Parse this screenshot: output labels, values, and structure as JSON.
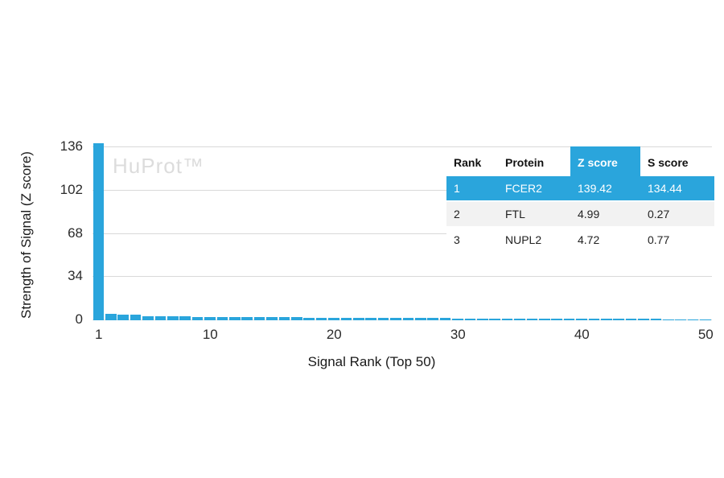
{
  "watermark": "HuProt™",
  "colors": {
    "bar": "#2aa5dc",
    "highlight_row": "#2aa5dc",
    "gridline": "#d9d9d9",
    "alt_row": "#f2f2f2",
    "watermark": "#dcdcdc",
    "text": "#2b2b2b"
  },
  "chart_data": {
    "type": "bar",
    "title": "",
    "xlabel": "Signal Rank (Top 50)",
    "ylabel": "Strength of Signal (Z score)",
    "x": [
      1,
      2,
      3,
      4,
      5,
      6,
      7,
      8,
      9,
      10,
      11,
      12,
      13,
      14,
      15,
      16,
      17,
      18,
      19,
      20,
      21,
      22,
      23,
      24,
      25,
      26,
      27,
      28,
      29,
      30,
      31,
      32,
      33,
      34,
      35,
      36,
      37,
      38,
      39,
      40,
      41,
      42,
      43,
      44,
      45,
      46,
      47,
      48,
      49,
      50
    ],
    "values": [
      139.42,
      4.99,
      4.72,
      4.3,
      3.4,
      3.2,
      3.0,
      2.9,
      2.8,
      2.7,
      2.6,
      2.55,
      2.5,
      2.4,
      2.35,
      2.3,
      2.25,
      2.2,
      2.1,
      2.05,
      2.0,
      1.95,
      1.9,
      1.85,
      1.8,
      1.75,
      1.7,
      1.65,
      1.6,
      1.55,
      1.5,
      1.45,
      1.4,
      1.38,
      1.35,
      1.3,
      1.28,
      1.25,
      1.2,
      1.18,
      1.15,
      1.1,
      1.08,
      1.05,
      1.0,
      0.98,
      0.95,
      0.9,
      0.85,
      0.8
    ],
    "yticks": [
      0,
      34,
      68,
      102,
      136
    ],
    "xticks": [
      1,
      10,
      20,
      30,
      40,
      50
    ],
    "ylim": [
      0,
      136
    ],
    "grid": true,
    "legend": "none",
    "annotation": "HuProt™"
  },
  "table": {
    "headers": [
      "Rank",
      "Protein",
      "Z score",
      "S score"
    ],
    "highlighted_column": "Z score",
    "rows": [
      {
        "rank": "1",
        "protein": "FCER2",
        "z": "139.42",
        "s": "134.44",
        "highlight": true
      },
      {
        "rank": "2",
        "protein": "FTL",
        "z": "4.99",
        "s": "0.27",
        "highlight": false
      },
      {
        "rank": "3",
        "protein": "NUPL2",
        "z": "4.72",
        "s": "0.77",
        "highlight": false
      }
    ]
  }
}
